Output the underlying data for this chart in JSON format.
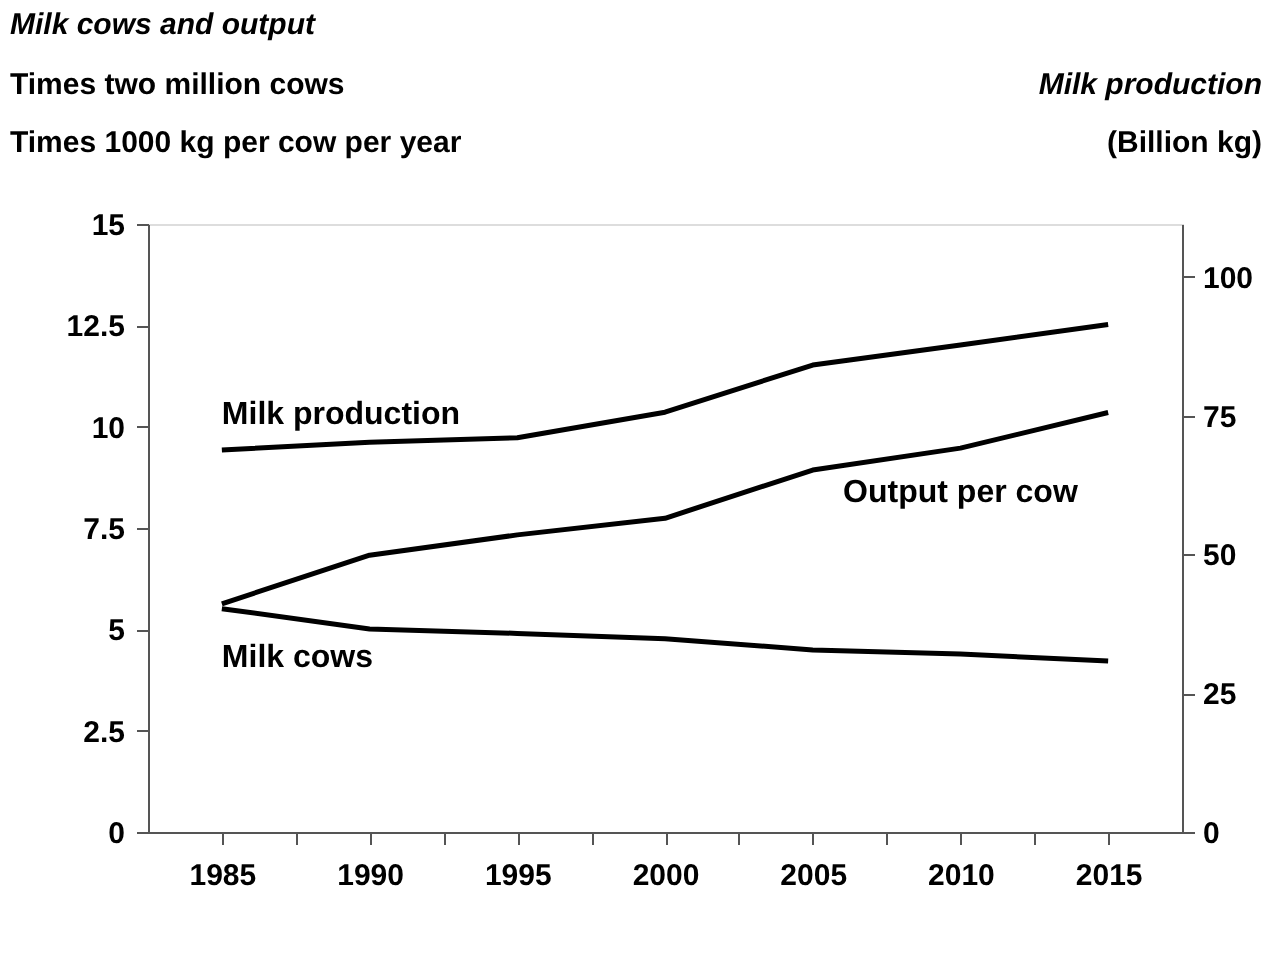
{
  "chart_data": {
    "type": "line",
    "title": "Milk cows and output",
    "ylabel": "Times two million cows\nTimes 1000 kg per cow per year",
    "y2label": "Milk production\n(Billion kg)",
    "x": [
      1985,
      1990,
      1995,
      2000,
      2005,
      2010,
      2015
    ],
    "xlim": [
      1982.5,
      2017.5
    ],
    "xticks": [
      1985,
      {
        "value": 1987.5,
        "label": null
      },
      1990,
      {
        "value": 1992.5,
        "label": null
      },
      1995,
      {
        "value": 1997.5,
        "label": null
      },
      2000,
      {
        "value": 2002.5,
        "label": null
      },
      2005,
      {
        "value": 2007.5,
        "label": null
      },
      2010,
      {
        "value": 2012.5,
        "label": null
      },
      2015
    ],
    "ylim": [
      0,
      15
    ],
    "yticks": [
      0,
      2.5,
      5,
      7.5,
      10,
      12.5,
      15
    ],
    "y2lim": [
      0,
      109.5
    ],
    "y2ticks": [
      0,
      25,
      50,
      75,
      100
    ],
    "series": [
      {
        "name": "Milk production",
        "color": "#000000",
        "axis": "y2",
        "values": [
          68.8,
          70.2,
          71.0,
          75.6,
          84.1,
          87.7,
          91.4
        ]
      },
      {
        "name": "Output per cow",
        "color": "#000000",
        "values": [
          5.63,
          6.83,
          7.33,
          7.74,
          8.93,
          9.47,
          10.35
        ]
      },
      {
        "name": "Milk cows",
        "color": "#000000",
        "values": [
          5.51,
          5.01,
          4.9,
          4.77,
          4.49,
          4.39,
          4.22
        ]
      }
    ],
    "grid": false,
    "marker": "none",
    "line_style": "solid"
  }
}
